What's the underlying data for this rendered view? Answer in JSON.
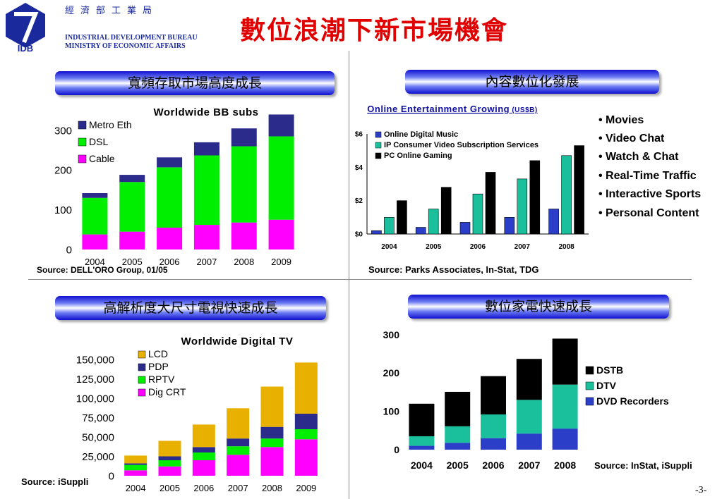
{
  "header": {
    "logo_text": "IDB",
    "org_cn": "經濟部工業局",
    "org_en_1": "INDUSTRIAL DEVELOPMENT BUREAU",
    "org_en_2": "MINISTRY OF ECONOMIC AFFAIRS",
    "title": "數位浪潮下新市場機會",
    "colors": {
      "title": "#e00000",
      "org": "#1a2a9c",
      "logo": "#1a2a9c"
    }
  },
  "page_number": "-3-",
  "panels": {
    "tl": {
      "banner": "寬頻存取市場高度成長",
      "source": "Source: DELL'ORO Group, 01/05"
    },
    "tr": {
      "banner": "內容數位化發展",
      "source": "Source: Parks Associates, In-Stat, TDG",
      "bullets": [
        "• Movies",
        "• Video Chat",
        "• Watch & Chat",
        "• Real-Time Traffic",
        "• Interactive Sports",
        "• Personal Content"
      ]
    },
    "bl": {
      "banner": "高解析度大尺寸電視快速成長",
      "source": "Source: iSuppli"
    },
    "br": {
      "banner": "數位家電快速成長",
      "source": "Source: InStat, iSuppli"
    }
  },
  "chart_data": [
    {
      "id": "bb",
      "type": "bar",
      "stacked": true,
      "title": "Worldwide BB subs",
      "categories": [
        "2004",
        "2005",
        "2006",
        "2007",
        "2008",
        "2009"
      ],
      "ylim": [
        0,
        300
      ],
      "yticks": [
        0,
        100,
        200,
        300
      ],
      "ytick_labels": [
        "0",
        "100",
        "200",
        "300"
      ],
      "legend_placement": "top-left",
      "series": [
        {
          "name": "Cable",
          "color": "#ff00ff",
          "values": [
            38,
            45,
            55,
            62,
            68,
            75
          ]
        },
        {
          "name": "DSL",
          "color": "#00ee00",
          "values": [
            92,
            125,
            152,
            175,
            192,
            210
          ]
        },
        {
          "name": "Metro Eth",
          "color": "#2b2b8c",
          "values": [
            12,
            18,
            25,
            33,
            45,
            55
          ]
        }
      ]
    },
    {
      "id": "ent",
      "type": "bar",
      "stacked": false,
      "title": "Online Entertainment Growing",
      "title_unit": "(US$B)",
      "categories": [
        "2004",
        "2005",
        "2006",
        "2007",
        "2008"
      ],
      "ylim": [
        0,
        6
      ],
      "yticks": [
        0,
        2,
        4,
        6
      ],
      "ytick_labels": [
        "$0",
        "$2",
        "$4",
        "$6"
      ],
      "legend_placement": "top-left",
      "series": [
        {
          "name": "Online Digital Music",
          "color": "#2a3ec8",
          "values": [
            0.2,
            0.4,
            0.7,
            1.0,
            1.5
          ]
        },
        {
          "name": "IP Consumer Video Subscription Services",
          "color": "#1abf9b",
          "values": [
            1.0,
            1.5,
            2.4,
            3.3,
            4.7
          ]
        },
        {
          "name": "PC Online Gaming",
          "color": "#000000",
          "values": [
            2.0,
            2.8,
            3.7,
            4.4,
            5.3
          ]
        }
      ]
    },
    {
      "id": "tv",
      "type": "bar",
      "stacked": true,
      "title": "Worldwide Digital TV",
      "categories": [
        "2004",
        "2005",
        "2006",
        "2007",
        "2008",
        "2009"
      ],
      "ylim": [
        0,
        150000
      ],
      "yticks": [
        0,
        25000,
        50000,
        75000,
        100000,
        125000,
        150000
      ],
      "ytick_labels": [
        "0",
        "25,000",
        "50,000",
        "75,000",
        "100,000",
        "125,000",
        "150,000"
      ],
      "legend_placement": "top-left",
      "series": [
        {
          "name": "Dig CRT",
          "color": "#ff00ff",
          "values": [
            7000,
            12000,
            20000,
            27000,
            37000,
            47000
          ]
        },
        {
          "name": "RPTV",
          "color": "#00ee00",
          "values": [
            7000,
            8000,
            10000,
            11000,
            11000,
            13000
          ]
        },
        {
          "name": "PDP",
          "color": "#2b2b8c",
          "values": [
            2000,
            5000,
            7000,
            10000,
            15000,
            20000
          ]
        },
        {
          "name": "LCD",
          "color": "#e8b000",
          "values": [
            10000,
            20000,
            29000,
            39000,
            52000,
            66000
          ]
        }
      ]
    },
    {
      "id": "home",
      "type": "bar",
      "stacked": true,
      "title": "",
      "categories": [
        "2004",
        "2005",
        "2006",
        "2007",
        "2008"
      ],
      "ylim": [
        0,
        300
      ],
      "yticks": [
        0,
        100,
        200,
        300
      ],
      "ytick_labels": [
        "0",
        "100",
        "200",
        "300"
      ],
      "legend_placement": "right",
      "series": [
        {
          "name": "DVD Recorders",
          "color": "#2a3ec8",
          "values": [
            10,
            18,
            30,
            42,
            55
          ]
        },
        {
          "name": "DTV",
          "color": "#1abf9b",
          "values": [
            25,
            43,
            62,
            88,
            115
          ]
        },
        {
          "name": "DSTB",
          "color": "#000000",
          "values": [
            85,
            90,
            100,
            107,
            120
          ]
        }
      ]
    }
  ]
}
